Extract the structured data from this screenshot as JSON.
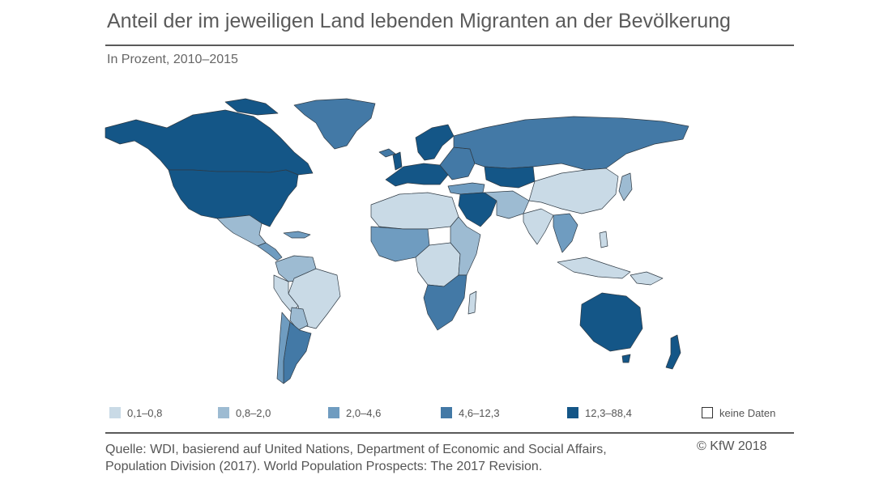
{
  "title": "Anteil der im jeweiligen Land lebenden Migranten an der Bevölkerung",
  "subtitle": "In Prozent, 2010–2015",
  "legend": [
    {
      "label": "0,1–0,8",
      "color": "#c9dae6"
    },
    {
      "label": "0,8–2,0",
      "color": "#9dbbd2"
    },
    {
      "label": "2,0–4,6",
      "color": "#6f9cc0"
    },
    {
      "label": "4,6–12,3",
      "color": "#4379a6"
    },
    {
      "label": "12,3–88,4",
      "color": "#145687"
    },
    {
      "label": "keine Daten",
      "color": "#ffffff"
    }
  ],
  "source": "Quelle: WDI, basierend auf United Nations, Department of Economic and Social Affairs, Population Division (2017). World Population Prospects: The 2017 Revision.",
  "copyright": "© KfW 2018"
}
